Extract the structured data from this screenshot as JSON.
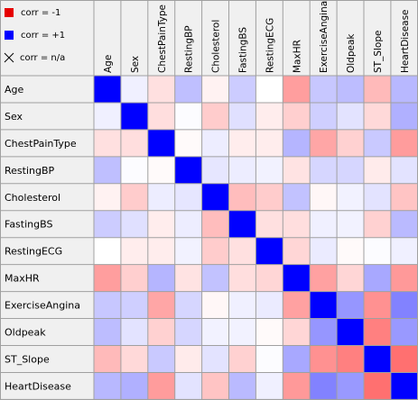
{
  "legend": {
    "neg_label": "corr = -1",
    "pos_label": "corr = +1",
    "na_label": "corr = n/a",
    "neg_color": "#e60000",
    "pos_color": "#0000ff"
  },
  "chart_data": {
    "type": "heatmap",
    "variables": [
      "Age",
      "Sex",
      "ChestPainType",
      "RestingBP",
      "Cholesterol",
      "FastingBS",
      "RestingECG",
      "MaxHR",
      "ExerciseAngina",
      "Oldpeak",
      "ST_Slope",
      "HeartDisease"
    ],
    "value_range": [
      -1,
      1
    ],
    "matrix": [
      [
        1.0,
        0.06,
        -0.12,
        0.25,
        -0.05,
        0.2,
        0.0,
        -0.38,
        0.22,
        0.26,
        -0.27,
        0.28
      ],
      [
        0.06,
        1.0,
        -0.13,
        0.01,
        -0.2,
        0.12,
        -0.07,
        -0.19,
        0.19,
        0.11,
        -0.15,
        0.31
      ],
      [
        -0.12,
        -0.13,
        1.0,
        -0.02,
        0.07,
        -0.07,
        -0.07,
        0.29,
        -0.35,
        -0.18,
        0.21,
        -0.39
      ],
      [
        0.25,
        0.01,
        -0.02,
        1.0,
        0.1,
        0.07,
        0.05,
        -0.11,
        0.16,
        0.16,
        -0.08,
        0.11
      ],
      [
        -0.05,
        -0.2,
        0.07,
        0.1,
        1.0,
        -0.26,
        -0.2,
        0.24,
        -0.03,
        0.05,
        0.11,
        -0.23
      ],
      [
        0.2,
        0.12,
        -0.07,
        0.07,
        -0.26,
        1.0,
        -0.12,
        -0.13,
        0.06,
        0.05,
        -0.18,
        0.27
      ],
      [
        0.0,
        -0.07,
        -0.07,
        0.05,
        -0.2,
        -0.12,
        1.0,
        -0.16,
        0.08,
        -0.02,
        0.01,
        0.06
      ],
      [
        -0.38,
        -0.19,
        0.29,
        -0.11,
        0.24,
        -0.13,
        -0.16,
        1.0,
        -0.37,
        -0.16,
        0.34,
        -0.4
      ],
      [
        0.22,
        0.19,
        -0.35,
        0.16,
        -0.03,
        0.06,
        0.08,
        -0.37,
        1.0,
        0.41,
        -0.43,
        0.49
      ],
      [
        0.26,
        0.11,
        -0.18,
        0.16,
        0.05,
        0.05,
        -0.02,
        -0.16,
        0.41,
        1.0,
        -0.5,
        0.4
      ],
      [
        -0.27,
        -0.15,
        0.21,
        -0.08,
        0.11,
        -0.18,
        0.01,
        0.34,
        -0.43,
        -0.5,
        1.0,
        -0.56
      ],
      [
        0.28,
        0.31,
        -0.39,
        0.11,
        -0.23,
        0.27,
        0.06,
        -0.4,
        0.49,
        0.4,
        -0.56,
        1.0
      ]
    ]
  }
}
